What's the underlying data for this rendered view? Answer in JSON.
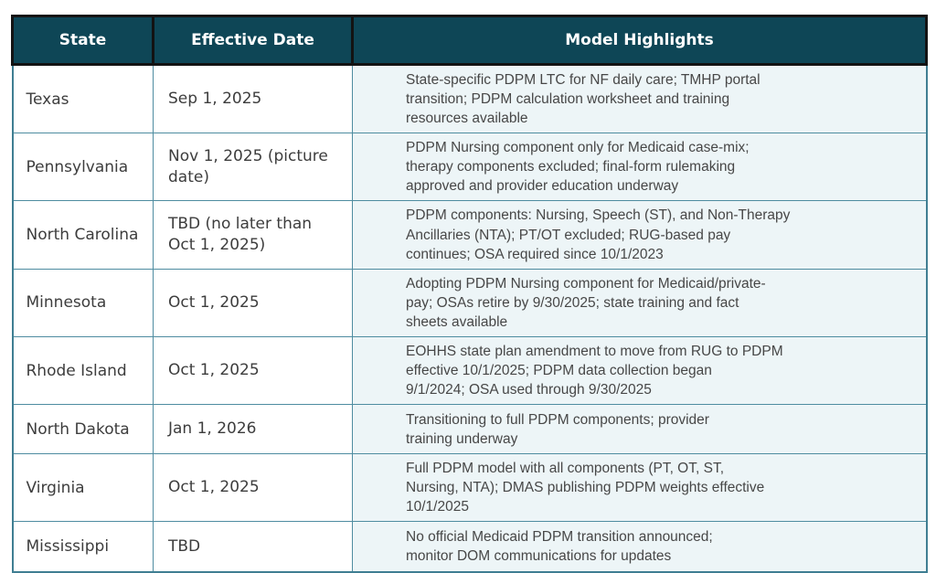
{
  "table": {
    "columns": [
      {
        "label": "State"
      },
      {
        "label": "Effective Date"
      },
      {
        "label": "Model Highlights"
      }
    ],
    "rows": [
      {
        "state": "Texas",
        "effective_date": "Sep 1, 2025",
        "highlights": "State-specific PDPM LTC for NF daily care; TMHP portal\ntransition; PDPM calculation worksheet and training\nresources available"
      },
      {
        "state": "Pennsylvania",
        "effective_date": "Nov 1, 2025 (picture\ndate)",
        "highlights": "PDPM Nursing component only for Medicaid case-mix;\ntherapy components excluded; final-form rulemaking\napproved and provider education underway"
      },
      {
        "state": "North Carolina",
        "effective_date": "TBD (no later than\nOct 1, 2025)",
        "highlights": "PDPM components: Nursing, Speech (ST), and Non-Therapy\nAncillaries (NTA); PT/OT excluded; RUG-based pay\ncontinues; OSA required since 10/1/2023"
      },
      {
        "state": "Minnesota",
        "effective_date": "Oct 1, 2025",
        "highlights": "Adopting PDPM Nursing component for Medicaid/private-\npay; OSAs retire by 9/30/2025; state training and fact\nsheets available"
      },
      {
        "state": "Rhode Island",
        "effective_date": "Oct 1, 2025",
        "highlights": "EOHHS state plan amendment to move from RUG to PDPM\neffective 10/1/2025; PDPM data collection began\n9/1/2024; OSA used through 9/30/2025"
      },
      {
        "state": "North Dakota",
        "effective_date": "Jan 1, 2026",
        "highlights": "Transitioning to full PDPM components; provider\ntraining underway"
      },
      {
        "state": "Virginia",
        "effective_date": "Oct 1, 2025",
        "highlights": "Full PDPM model with all components (PT, OT, ST,\nNursing, NTA); DMAS publishing PDPM weights effective\n10/1/2025"
      },
      {
        "state": "Mississippi",
        "effective_date": "TBD",
        "highlights": "No official Medicaid PDPM transition announced;\nmonitor DOM communications for updates"
      }
    ]
  },
  "colors": {
    "header_background": "#0e4656",
    "header_text": "#ffffff",
    "header_border": "#131313",
    "body_border_teal": "#4e8ca0",
    "outer_border_teal": "#3f7e92",
    "highlights_background": "#edf5f7",
    "body_text": "#3d3d3d"
  }
}
